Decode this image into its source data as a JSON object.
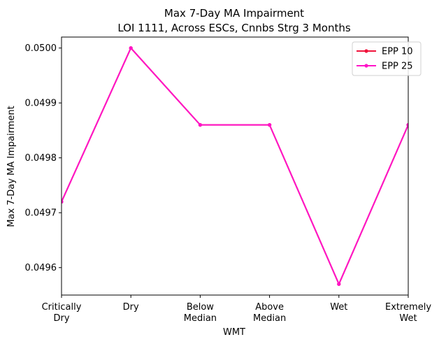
{
  "chart_data": {
    "type": "line",
    "title": "Max 7-Day MA Impairment",
    "subtitle": "LOI 1111, Across ESCs, Cnnbs Strg 3 Months",
    "xlabel": "WMT",
    "ylabel": "Max 7-Day MA Impairment",
    "categories": [
      [
        "Critically",
        "Dry"
      ],
      [
        "Dry"
      ],
      [
        "Below",
        "Median"
      ],
      [
        "Above",
        "Median"
      ],
      [
        "Wet"
      ],
      [
        "Extremely",
        "Wet"
      ]
    ],
    "ylim": [
      0.04955,
      0.05002
    ],
    "yticks": [
      0.0496,
      0.0497,
      0.0498,
      0.0499,
      0.05
    ],
    "ytick_labels": [
      "0.0496",
      "0.0497",
      "0.0498",
      "0.0499",
      "0.0500"
    ],
    "grid": false,
    "legend_position": "top-right",
    "series": [
      {
        "name": "EPP 10",
        "color": "#f0143c",
        "values": [
          0.04972,
          0.05,
          0.04986,
          0.04986,
          0.04957,
          0.04986
        ]
      },
      {
        "name": "EPP 25",
        "color": "#ff14c8",
        "values": [
          0.04972,
          0.05,
          0.04986,
          0.04986,
          0.04957,
          0.04986
        ]
      }
    ]
  }
}
